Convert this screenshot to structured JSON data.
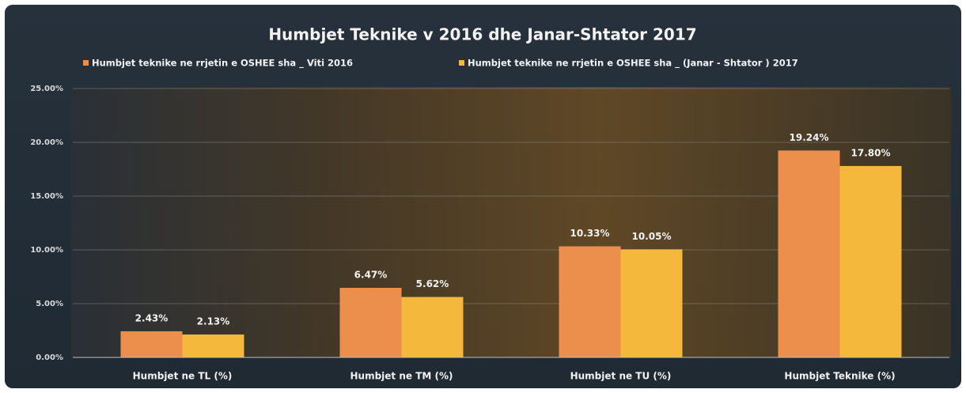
{
  "chart_data": {
    "type": "bar",
    "title": "Humbjet Teknike v 2016 dhe Janar-Shtator 2017",
    "categories": [
      "Humbjet ne TL (%)",
      "Humbjet ne TM (%)",
      "Humbjet ne TU (%)",
      "Humbjet Teknike (%)"
    ],
    "series": [
      {
        "name": "Humbjet teknike ne rrjetin e OSHEE sha _ Viti 2016",
        "color": "#ec8f4c",
        "values": [
          2.43,
          6.47,
          10.33,
          19.24
        ],
        "value_labels": [
          "2.43%",
          "6.47%",
          "10.33%",
          "19.24%"
        ]
      },
      {
        "name": "Humbjet teknike ne rrjetin e OSHEE sha _  (Janar - Shtator ) 2017",
        "color": "#f4b93c",
        "values": [
          2.13,
          5.62,
          10.05,
          17.8
        ],
        "value_labels": [
          "2.13%",
          "5.62%",
          "10.05%",
          "17.80%"
        ]
      }
    ],
    "ylim": [
      0,
      25
    ],
    "yticks": [
      {
        "value": 0,
        "label": "0.00%"
      },
      {
        "value": 5,
        "label": "5.00%"
      },
      {
        "value": 10,
        "label": "10.00%"
      },
      {
        "value": 15,
        "label": "15.00%"
      },
      {
        "value": 20,
        "label": "20.00%"
      },
      {
        "value": 25,
        "label": "25.00%"
      }
    ],
    "grid": true,
    "legend": "top"
  }
}
